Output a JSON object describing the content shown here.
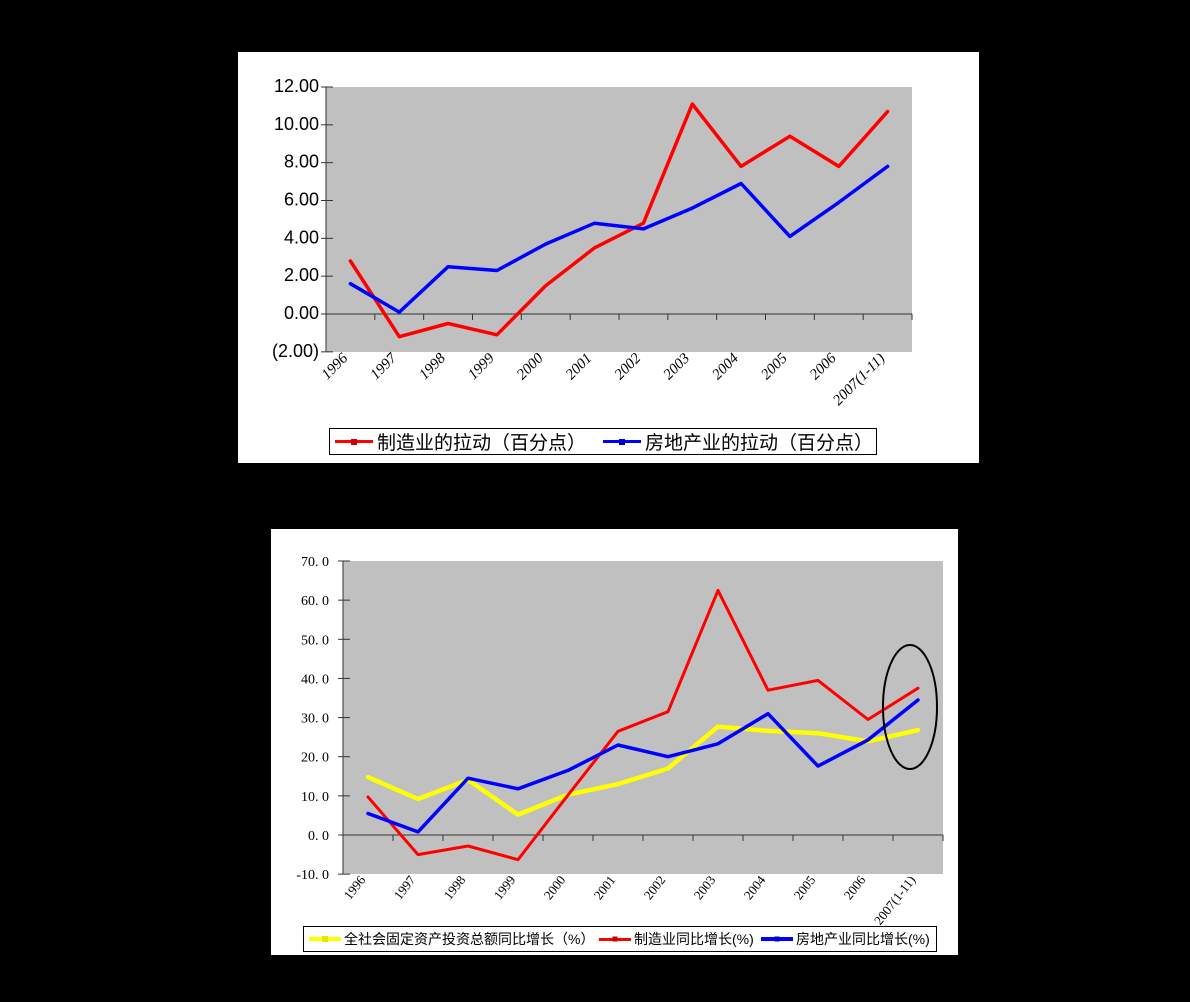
{
  "page": {
    "background_color": "#000000",
    "panel_color": "#ffffff"
  },
  "chart_data": [
    {
      "type": "line",
      "title": "",
      "xlabel": "",
      "ylabel": "",
      "categories": [
        "1996",
        "1997",
        "1998",
        "1999",
        "2000",
        "2001",
        "2002",
        "2003",
        "2004",
        "2005",
        "2006",
        "2007(1-11)"
      ],
      "y_tick_labels": [
        "12.00",
        "10.00",
        "8.00",
        "6.00",
        "4.00",
        "2.00",
        "0.00",
        "(2.00)"
      ],
      "ylim": [
        -2,
        12
      ],
      "y_step": 2,
      "grid": false,
      "plot_background": "#c0c0c0",
      "negative_tick_color": "#ff0000",
      "legend_position": "bottom",
      "series": [
        {
          "name": "制造业的拉动（百分点）",
          "color": "#ff0000",
          "values": [
            2.8,
            -1.2,
            -0.5,
            -1.1,
            1.5,
            3.5,
            4.8,
            11.1,
            7.8,
            9.4,
            7.8,
            10.7
          ]
        },
        {
          "name": "房地产业的拉动（百分点）",
          "color": "#0000ff",
          "values": [
            1.6,
            0.1,
            2.5,
            2.3,
            3.7,
            4.8,
            4.5,
            5.6,
            6.9,
            4.1,
            5.9,
            7.8
          ]
        }
      ]
    },
    {
      "type": "line",
      "title": "",
      "xlabel": "",
      "ylabel": "",
      "categories": [
        "1996",
        "1997",
        "1998",
        "1999",
        "2000",
        "2001",
        "2002",
        "2003",
        "2004",
        "2005",
        "2006",
        "2007(1-11)"
      ],
      "y_tick_labels": [
        "70. 0",
        "60. 0",
        "50. 0",
        "40. 0",
        "30. 0",
        "20. 0",
        "10. 0",
        "0. 0",
        "-10. 0"
      ],
      "ylim": [
        -10,
        70
      ],
      "y_step": 10,
      "grid": false,
      "plot_background": "#c0c0c0",
      "legend_position": "bottom",
      "annotation": {
        "shape": "ellipse",
        "color": "#000000",
        "highlights": "2007(1-11) data points"
      },
      "series": [
        {
          "name": "全社会固定资产投资总额同比增长（%）",
          "color": "#ffff00",
          "values": [
            14.8,
            9.2,
            14.1,
            5.2,
            10.3,
            13.0,
            17.0,
            27.7,
            26.6,
            26.0,
            23.9,
            26.8
          ]
        },
        {
          "name": "制造业同比增长(%)",
          "color": "#ff0000",
          "values": [
            9.7,
            -5.0,
            -2.8,
            -6.3,
            10.2,
            26.5,
            31.5,
            62.5,
            37.0,
            39.5,
            29.5,
            37.5
          ]
        },
        {
          "name": "房地产业同比增长(%)",
          "color": "#0000ff",
          "values": [
            5.5,
            0.8,
            14.5,
            11.8,
            16.5,
            23.0,
            20.0,
            23.3,
            31.0,
            17.6,
            24.3,
            34.5
          ]
        }
      ]
    }
  ]
}
